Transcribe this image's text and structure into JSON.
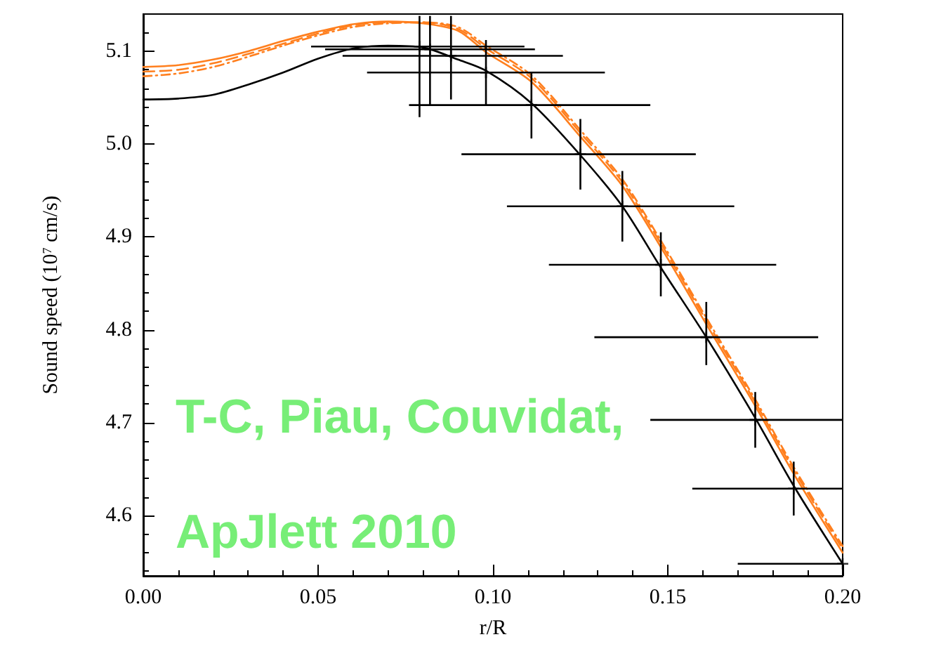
{
  "chart_data": {
    "type": "line",
    "xlabel": "r/R",
    "ylabel": "Sound speed (10$^{7}$ cm/s)",
    "xlim": [
      0,
      0.2
    ],
    "ylim": [
      4.535,
      5.14
    ],
    "xticks": [
      {
        "value": 0,
        "label": "0.00"
      },
      {
        "value": 0.05,
        "label": "0.05"
      },
      {
        "value": 0.1,
        "label": "0.10"
      },
      {
        "value": 0.15,
        "label": "0.15"
      },
      {
        "value": 0.2,
        "label": "0.20"
      }
    ],
    "yticks": [
      4.6,
      4.7,
      4.8,
      4.9,
      {
        "value": 5.0,
        "label": "5.0"
      },
      5.1
    ],
    "grid": false,
    "annotations": [
      "T-C, Piau, Couvidat,",
      "ApJlett 2010"
    ],
    "series": [
      {
        "color": "#000000",
        "line_style": "solid",
        "x": [
          0,
          0.01,
          0.02,
          0.03,
          0.04,
          0.05,
          0.06,
          0.07,
          0.08,
          0.09,
          0.098,
          0.111,
          0.125,
          0.137,
          0.148,
          0.161,
          0.175,
          0.186,
          0.2
        ],
        "values": [
          5.048,
          5.049,
          5.053,
          5.064,
          5.077,
          5.092,
          5.103,
          5.106,
          5.104,
          5.091,
          5.079,
          5.044,
          4.988,
          4.933,
          4.867,
          4.792,
          4.705,
          4.632,
          4.548
        ]
      },
      {
        "color": "#ff7f1e",
        "line_style": "solid",
        "x": [
          0,
          0.01,
          0.02,
          0.03,
          0.04,
          0.05,
          0.06,
          0.07,
          0.08,
          0.09,
          0.098,
          0.111,
          0.125,
          0.137,
          0.148,
          0.161,
          0.175,
          0.186,
          0.2
        ],
        "values": [
          5.083,
          5.085,
          5.091,
          5.1,
          5.111,
          5.121,
          5.129,
          5.132,
          5.13,
          5.122,
          5.099,
          5.067,
          5.008,
          4.955,
          4.889,
          4.806,
          4.718,
          4.645,
          4.56
        ]
      },
      {
        "color": "#ff7f1e",
        "line_style": "dashed",
        "x": [
          0,
          0.01,
          0.02,
          0.03,
          0.04,
          0.05,
          0.06,
          0.07,
          0.08,
          0.09,
          0.098,
          0.111,
          0.125,
          0.137,
          0.148,
          0.161,
          0.175,
          0.186,
          0.2
        ],
        "values": [
          5.078,
          5.08,
          5.087,
          5.097,
          5.108,
          5.119,
          5.128,
          5.131,
          5.131,
          5.124,
          5.103,
          5.071,
          5.012,
          4.959,
          4.893,
          4.81,
          4.722,
          4.649,
          4.564
        ]
      },
      {
        "color": "#ff7f1e",
        "line_style": "dashdot",
        "x": [
          0,
          0.01,
          0.02,
          0.03,
          0.04,
          0.05,
          0.06,
          0.07,
          0.08,
          0.09,
          0.098,
          0.111,
          0.125,
          0.137,
          0.148,
          0.161,
          0.175,
          0.186,
          0.2
        ],
        "values": [
          5.073,
          5.076,
          5.083,
          5.094,
          5.106,
          5.117,
          5.126,
          5.13,
          5.131,
          5.126,
          5.106,
          5.074,
          5.015,
          4.962,
          4.896,
          4.813,
          4.725,
          4.652,
          4.567
        ]
      },
      {
        "type": "scatter",
        "color": "#000000",
        "marker": "cross",
        "x": [
          0.079,
          0.082,
          0.088,
          0.098,
          0.111,
          0.125,
          0.137,
          0.148,
          0.161,
          0.175,
          0.186,
          0.2
        ],
        "values": [
          5.105,
          5.102,
          5.095,
          5.077,
          5.042,
          4.989,
          4.933,
          4.87,
          4.792,
          4.703,
          4.629,
          4.548
        ],
        "errors": [
          [
            5.029,
            5.138
          ],
          [
            5.041,
            5.138
          ],
          [
            5.048,
            5.138
          ],
          [
            5.041,
            5.112
          ],
          [
            5.006,
            5.077
          ],
          [
            4.951,
            5.027
          ],
          [
            4.895,
            4.971
          ],
          [
            4.836,
            4.905
          ],
          [
            4.762,
            4.83
          ],
          [
            4.673,
            4.733
          ],
          [
            4.6,
            4.658
          ],
          null
        ],
        "xerrors": [
          [
            0.048,
            0.109
          ],
          [
            0.052,
            0.112
          ],
          [
            0.057,
            0.12
          ],
          [
            0.064,
            0.132
          ],
          [
            0.076,
            0.145
          ],
          [
            0.091,
            0.158
          ],
          [
            0.104,
            0.169
          ],
          [
            0.116,
            0.181
          ],
          [
            0.129,
            0.193
          ],
          [
            0.145,
            0.2
          ],
          [
            0.157,
            0.2
          ],
          [
            0.17,
            0.2
          ]
        ]
      }
    ]
  }
}
